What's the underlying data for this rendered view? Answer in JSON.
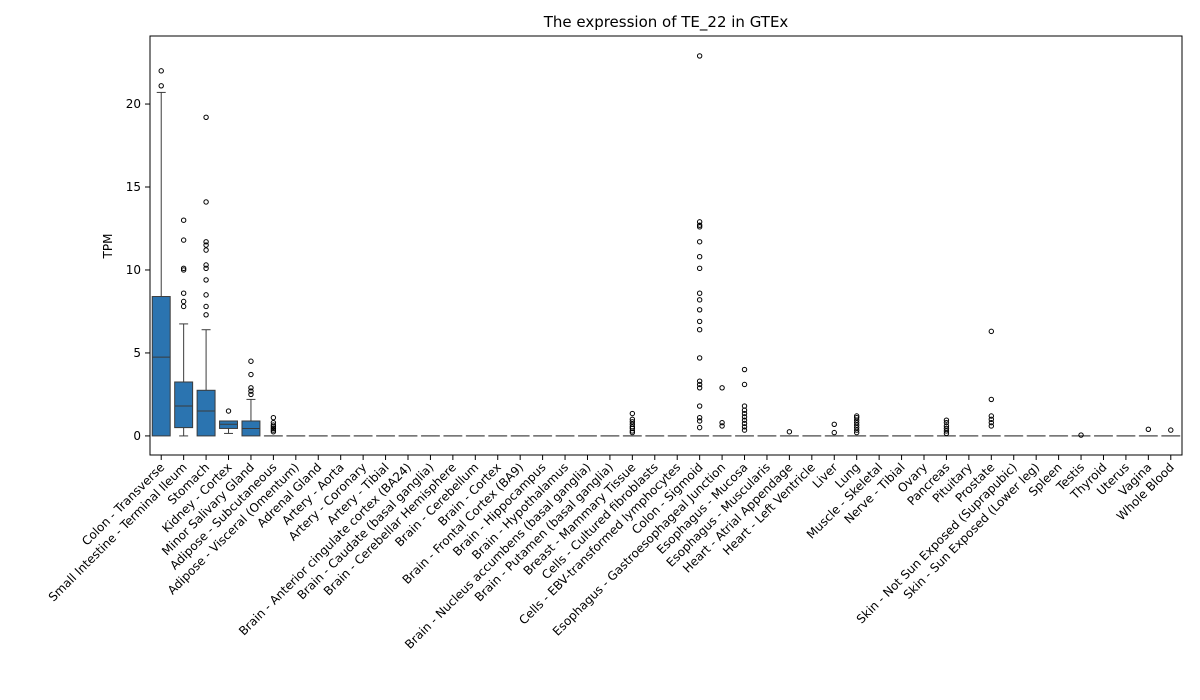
{
  "chart_data": {
    "type": "box",
    "title": "The expression of TE_22 in GTEx",
    "xlabel": "",
    "ylabel": "TPM",
    "ylim": [
      -1.15,
      24.1
    ],
    "yticks": [
      0,
      5,
      10,
      15,
      20
    ],
    "grid": false,
    "box_color": "#2b74b0",
    "categories": [
      "Colon - Transverse",
      "Small Intestine - Terminal Ileum",
      "Stomach",
      "Kidney - Cortex",
      "Minor Salivary Gland",
      "Adipose - Subcutaneous",
      "Adipose - Visceral (Omentum)",
      "Adrenal Gland",
      "Artery - Aorta",
      "Artery - Coronary",
      "Artery - Tibial",
      "Brain - Anterior cingulate cortex (BA24)",
      "Brain - Caudate (basal ganglia)",
      "Brain - Cerebellar Hemisphere",
      "Brain - Cerebellum",
      "Brain - Cortex",
      "Brain - Frontal Cortex (BA9)",
      "Brain - Hippocampus",
      "Brain - Hypothalamus",
      "Brain - Nucleus accumbens (basal ganglia)",
      "Brain - Putamen (basal ganglia)",
      "Breast - Mammary Tissue",
      "Cells - Cultured fibroblasts",
      "Cells - EBV-transformed lymphocytes",
      "Colon - Sigmoid",
      "Esophagus - Gastroesophageal Junction",
      "Esophagus - Mucosa",
      "Esophagus - Muscularis",
      "Heart - Atrial Appendage",
      "Heart - Left Ventricle",
      "Liver",
      "Lung",
      "Muscle - Skeletal",
      "Nerve - Tibial",
      "Ovary",
      "Pancreas",
      "Pituitary",
      "Prostate",
      "Skin - Not Sun Exposed (Suprapubic)",
      "Skin - Sun Exposed (Lower leg)",
      "Spleen",
      "Testis",
      "Thyroid",
      "Uterus",
      "Vagina",
      "Whole Blood"
    ],
    "boxes": [
      {
        "q1": 0,
        "median": 4.75,
        "q3": 8.4,
        "whislo": 0,
        "whishi": 20.7,
        "fliers": [
          21.1,
          22.0
        ]
      },
      {
        "q1": 0.5,
        "median": 1.8,
        "q3": 3.25,
        "whislo": 0,
        "whishi": 6.75,
        "fliers": [
          7.8,
          8.1,
          8.6,
          10.0,
          10.1,
          11.8,
          13.0
        ]
      },
      {
        "q1": 0,
        "median": 1.5,
        "q3": 2.75,
        "whislo": 0,
        "whishi": 6.4,
        "fliers": [
          7.3,
          7.8,
          8.5,
          9.4,
          10.1,
          10.3,
          11.2,
          11.5,
          11.7,
          14.1,
          19.2
        ]
      },
      {
        "q1": 0.45,
        "median": 0.7,
        "q3": 0.9,
        "whislo": 0.15,
        "whishi": 0.9,
        "fliers": [
          1.5
        ]
      },
      {
        "q1": 0,
        "median": 0.45,
        "q3": 0.9,
        "whislo": 0,
        "whishi": 2.2,
        "fliers": [
          2.5,
          2.7,
          2.9,
          3.7,
          4.5
        ]
      },
      {
        "q1": 0,
        "median": 0,
        "q3": 0,
        "whislo": 0,
        "whishi": 0,
        "fliers": [
          0.25,
          0.35,
          0.45,
          0.55,
          0.65,
          0.8,
          1.1
        ]
      },
      {
        "q1": 0,
        "median": 0,
        "q3": 0,
        "whislo": 0,
        "whishi": 0,
        "fliers": []
      },
      {
        "q1": 0,
        "median": 0,
        "q3": 0,
        "whislo": 0,
        "whishi": 0,
        "fliers": []
      },
      {
        "q1": 0,
        "median": 0,
        "q3": 0,
        "whislo": 0,
        "whishi": 0,
        "fliers": []
      },
      {
        "q1": 0,
        "median": 0,
        "q3": 0,
        "whislo": 0,
        "whishi": 0,
        "fliers": []
      },
      {
        "q1": 0,
        "median": 0,
        "q3": 0,
        "whislo": 0,
        "whishi": 0,
        "fliers": []
      },
      {
        "q1": 0,
        "median": 0,
        "q3": 0,
        "whislo": 0,
        "whishi": 0,
        "fliers": []
      },
      {
        "q1": 0,
        "median": 0,
        "q3": 0,
        "whislo": 0,
        "whishi": 0,
        "fliers": []
      },
      {
        "q1": 0,
        "median": 0,
        "q3": 0,
        "whislo": 0,
        "whishi": 0,
        "fliers": []
      },
      {
        "q1": 0,
        "median": 0,
        "q3": 0,
        "whislo": 0,
        "whishi": 0,
        "fliers": []
      },
      {
        "q1": 0,
        "median": 0,
        "q3": 0,
        "whislo": 0,
        "whishi": 0,
        "fliers": []
      },
      {
        "q1": 0,
        "median": 0,
        "q3": 0,
        "whislo": 0,
        "whishi": 0,
        "fliers": []
      },
      {
        "q1": 0,
        "median": 0,
        "q3": 0,
        "whislo": 0,
        "whishi": 0,
        "fliers": []
      },
      {
        "q1": 0,
        "median": 0,
        "q3": 0,
        "whislo": 0,
        "whishi": 0,
        "fliers": []
      },
      {
        "q1": 0,
        "median": 0,
        "q3": 0,
        "whislo": 0,
        "whishi": 0,
        "fliers": []
      },
      {
        "q1": 0,
        "median": 0,
        "q3": 0,
        "whislo": 0,
        "whishi": 0,
        "fliers": []
      },
      {
        "q1": 0,
        "median": 0,
        "q3": 0,
        "whislo": 0,
        "whishi": 0,
        "fliers": [
          0.2,
          0.3,
          0.45,
          0.55,
          0.7,
          0.85,
          1.0,
          1.35
        ]
      },
      {
        "q1": 0,
        "median": 0,
        "q3": 0,
        "whislo": 0,
        "whishi": 0,
        "fliers": []
      },
      {
        "q1": 0,
        "median": 0,
        "q3": 0,
        "whislo": 0,
        "whishi": 0,
        "fliers": []
      },
      {
        "q1": 0,
        "median": 0,
        "q3": 0,
        "whislo": 0,
        "whishi": 0,
        "fliers": [
          0.5,
          0.9,
          1.1,
          1.8,
          2.9,
          3.1,
          3.3,
          4.7,
          6.4,
          6.9,
          7.6,
          8.2,
          8.6,
          10.1,
          10.8,
          11.7,
          12.6,
          12.7,
          12.9,
          22.9
        ]
      },
      {
        "q1": 0,
        "median": 0,
        "q3": 0,
        "whislo": 0,
        "whishi": 0,
        "fliers": [
          0.6,
          0.8,
          2.9
        ]
      },
      {
        "q1": 0,
        "median": 0,
        "q3": 0,
        "whislo": 0,
        "whishi": 0,
        "fliers": [
          0.35,
          0.55,
          0.75,
          0.95,
          1.15,
          1.35,
          1.55,
          1.8,
          3.1,
          4.0
        ]
      },
      {
        "q1": 0,
        "median": 0,
        "q3": 0,
        "whislo": 0,
        "whishi": 0,
        "fliers": []
      },
      {
        "q1": 0,
        "median": 0,
        "q3": 0,
        "whislo": 0,
        "whishi": 0,
        "fliers": [
          0.25
        ]
      },
      {
        "q1": 0,
        "median": 0,
        "q3": 0,
        "whislo": 0,
        "whishi": 0,
        "fliers": []
      },
      {
        "q1": 0,
        "median": 0,
        "q3": 0,
        "whislo": 0,
        "whishi": 0,
        "fliers": [
          0.2,
          0.7
        ]
      },
      {
        "q1": 0,
        "median": 0,
        "q3": 0,
        "whislo": 0,
        "whishi": 0,
        "fliers": [
          0.2,
          0.35,
          0.5,
          0.65,
          0.8,
          0.95,
          1.1,
          1.2
        ]
      },
      {
        "q1": 0,
        "median": 0,
        "q3": 0,
        "whislo": 0,
        "whishi": 0,
        "fliers": []
      },
      {
        "q1": 0,
        "median": 0,
        "q3": 0,
        "whislo": 0,
        "whishi": 0,
        "fliers": []
      },
      {
        "q1": 0,
        "median": 0,
        "q3": 0,
        "whislo": 0,
        "whishi": 0,
        "fliers": []
      },
      {
        "q1": 0,
        "median": 0,
        "q3": 0,
        "whislo": 0,
        "whishi": 0,
        "fliers": [
          0.15,
          0.3,
          0.45,
          0.6,
          0.8,
          0.95
        ]
      },
      {
        "q1": 0,
        "median": 0,
        "q3": 0,
        "whislo": 0,
        "whishi": 0,
        "fliers": []
      },
      {
        "q1": 0,
        "median": 0,
        "q3": 0,
        "whislo": 0,
        "whishi": 0,
        "fliers": [
          0.6,
          0.8,
          1.0,
          1.2,
          2.2,
          6.3
        ]
      },
      {
        "q1": 0,
        "median": 0,
        "q3": 0,
        "whislo": 0,
        "whishi": 0,
        "fliers": []
      },
      {
        "q1": 0,
        "median": 0,
        "q3": 0,
        "whislo": 0,
        "whishi": 0,
        "fliers": []
      },
      {
        "q1": 0,
        "median": 0,
        "q3": 0,
        "whislo": 0,
        "whishi": 0,
        "fliers": []
      },
      {
        "q1": 0,
        "median": 0,
        "q3": 0,
        "whislo": 0,
        "whishi": 0,
        "fliers": [
          0.05
        ]
      },
      {
        "q1": 0,
        "median": 0,
        "q3": 0,
        "whislo": 0,
        "whishi": 0,
        "fliers": []
      },
      {
        "q1": 0,
        "median": 0,
        "q3": 0,
        "whislo": 0,
        "whishi": 0,
        "fliers": []
      },
      {
        "q1": 0,
        "median": 0,
        "q3": 0,
        "whislo": 0,
        "whishi": 0,
        "fliers": [
          0.4
        ]
      },
      {
        "q1": 0,
        "median": 0,
        "q3": 0,
        "whislo": 0,
        "whishi": 0,
        "fliers": [
          0.35
        ]
      }
    ]
  }
}
